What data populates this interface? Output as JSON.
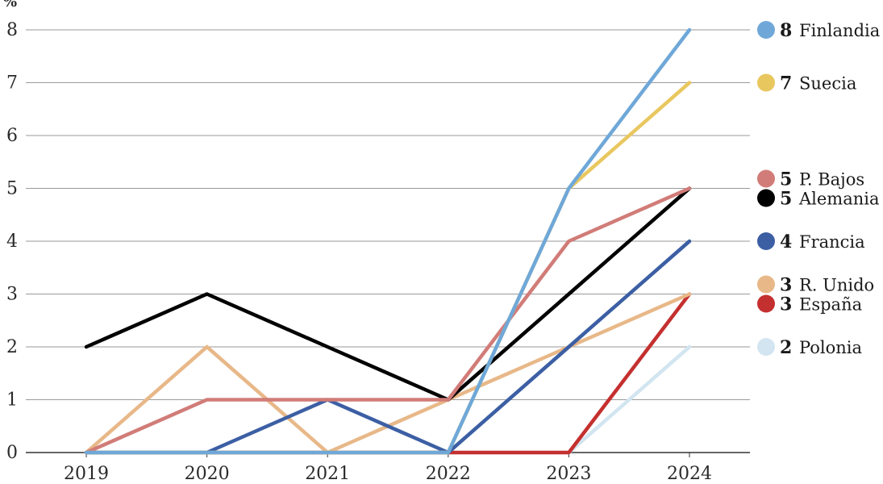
{
  "chart_data": {
    "type": "line",
    "unit": "%",
    "x": [
      "2019",
      "2020",
      "2021",
      "2022",
      "2023",
      "2024"
    ],
    "ylim": [
      0,
      8
    ],
    "yticks": [
      "0",
      "1",
      "2",
      "3",
      "4",
      "5",
      "6",
      "7",
      "8"
    ],
    "grid": "horizontal",
    "legend_placement": "right, at series end values",
    "series": [
      {
        "name": "Finlandia",
        "label_value": "8",
        "color": "#6fa8d8",
        "values": [
          0,
          0,
          0,
          0,
          5,
          8
        ]
      },
      {
        "name": "Suecia",
        "label_value": "7",
        "color": "#e9c75f",
        "values": [
          0,
          0,
          0,
          0,
          5,
          7
        ]
      },
      {
        "name": "P. Bajos",
        "label_value": "5",
        "color": "#d17c78",
        "values": [
          0,
          1,
          1,
          1,
          4,
          5
        ]
      },
      {
        "name": "Alemania",
        "label_value": "5",
        "color": "#000000",
        "values": [
          2,
          3,
          2,
          1,
          3,
          5
        ]
      },
      {
        "name": "Francia",
        "label_value": "4",
        "color": "#3c5fa4",
        "values": [
          0,
          0,
          1,
          0,
          2,
          4
        ]
      },
      {
        "name": "R. Unido",
        "label_value": "3",
        "color": "#e8b888",
        "values": [
          0,
          2,
          0,
          1,
          2,
          3
        ]
      },
      {
        "name": "España",
        "label_value": "3",
        "color": "#c4302f",
        "values": [
          0,
          0,
          0,
          0,
          0,
          3
        ]
      },
      {
        "name": "Polonia",
        "label_value": "2",
        "color": "#d2e5f0",
        "values": [
          0,
          0,
          0,
          0,
          0,
          2
        ]
      }
    ]
  }
}
